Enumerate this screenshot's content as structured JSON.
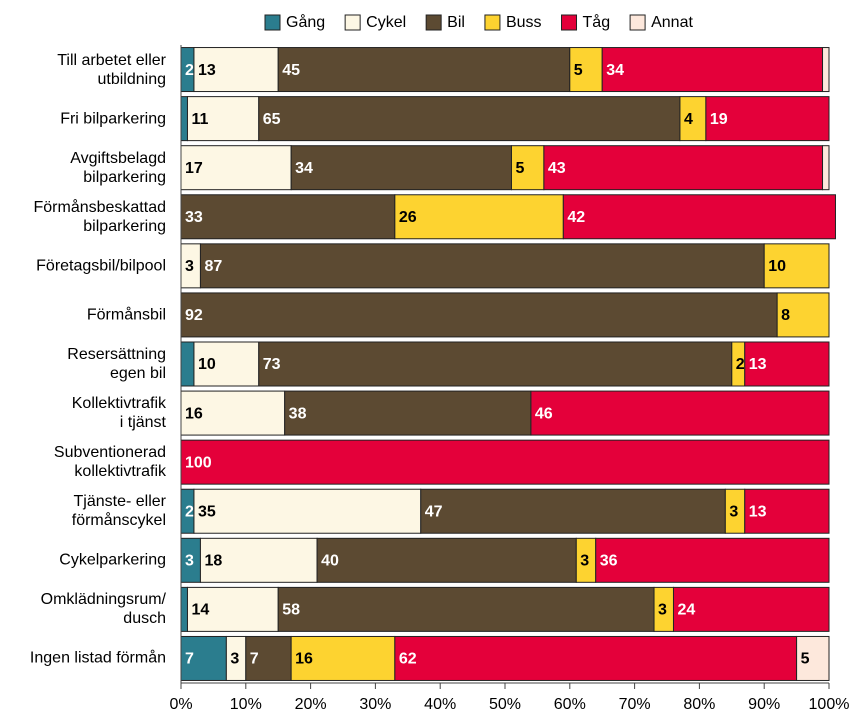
{
  "chart_data": {
    "type": "stacked_barh",
    "categories": [
      "Till arbetet eller\nutbildning",
      "Fri bilparkering",
      "Avgiftsbelagd\nbilparkering",
      "Förmånsbeskattad\nbilparkering",
      "Företagsbil/bilpool",
      "Förmånsbil",
      "Resersättning\negen bil",
      "Kollektivtrafik\ni tjänst",
      "Subventionerad\nkollektivtrafik",
      "Tjänste- eller\nförmånscykel",
      "Cykelparkering",
      "Omklädningsrum/\ndusch",
      "Ingen listad förmån"
    ],
    "series": [
      {
        "name": "Gång",
        "color": "#2b7d8e",
        "label_color": "#ffffff",
        "values": [
          2,
          1,
          0,
          0,
          0,
          0,
          2,
          0,
          0,
          2,
          3,
          1,
          7
        ],
        "value_labels": [
          "2",
          null,
          null,
          null,
          null,
          null,
          null,
          null,
          null,
          "2",
          "3",
          null,
          "7"
        ]
      },
      {
        "name": "Cykel",
        "color": "#fdf7e4",
        "label_color": "#000000",
        "values": [
          13,
          11,
          17,
          0,
          3,
          0,
          10,
          16,
          0,
          35,
          18,
          14,
          3
        ],
        "value_labels": [
          "13",
          "11",
          "17",
          null,
          "3",
          null,
          "10",
          "16",
          null,
          "35",
          "18",
          "14",
          "3"
        ]
      },
      {
        "name": "Bil",
        "color": "#5c4a32",
        "label_color": "#ffffff",
        "values": [
          45,
          65,
          34,
          33,
          87,
          92,
          73,
          38,
          0,
          47,
          40,
          58,
          7
        ],
        "value_labels": [
          "45",
          "65",
          "34",
          "33",
          "87",
          "92",
          "73",
          "38",
          null,
          "47",
          "40",
          "58",
          "7"
        ]
      },
      {
        "name": "Buss",
        "color": "#fdd330",
        "label_color": "#000000",
        "values": [
          5,
          4,
          5,
          26,
          10,
          8,
          2,
          0,
          0,
          3,
          3,
          3,
          16
        ],
        "value_labels": [
          "5",
          "4",
          "5",
          "26",
          "10",
          "8",
          "2",
          null,
          null,
          "3",
          "3",
          "3",
          "16"
        ]
      },
      {
        "name": "Tåg",
        "color": "#e4003a",
        "label_color": "#ffffff",
        "values": [
          34,
          19,
          43,
          42,
          0,
          0,
          13,
          46,
          100,
          13,
          36,
          24,
          62
        ],
        "value_labels": [
          "34",
          "19",
          "43",
          "42",
          null,
          null,
          "13",
          "46",
          "100",
          "13",
          "36",
          "24",
          "62"
        ]
      },
      {
        "name": "Annat",
        "color": "#fde8dc",
        "label_color": "#000000",
        "values": [
          1,
          0,
          1,
          0,
          0,
          0,
          0,
          0,
          0,
          0,
          0,
          0,
          5
        ],
        "value_labels": [
          null,
          null,
          null,
          null,
          null,
          null,
          null,
          null,
          null,
          null,
          null,
          null,
          "5"
        ]
      }
    ],
    "xlim": [
      0,
      100
    ],
    "xticks": [
      {
        "value": 0,
        "label": "0%"
      },
      {
        "value": 10,
        "label": "10%"
      },
      {
        "value": 20,
        "label": "20%"
      },
      {
        "value": 30,
        "label": "30%"
      },
      {
        "value": 40,
        "label": "40%"
      },
      {
        "value": 50,
        "label": "50%"
      },
      {
        "value": 60,
        "label": "60%"
      },
      {
        "value": 70,
        "label": "70%"
      },
      {
        "value": 80,
        "label": "80%"
      },
      {
        "value": 90,
        "label": "90%"
      },
      {
        "value": 100,
        "label": "100%"
      }
    ],
    "legend": "top"
  }
}
